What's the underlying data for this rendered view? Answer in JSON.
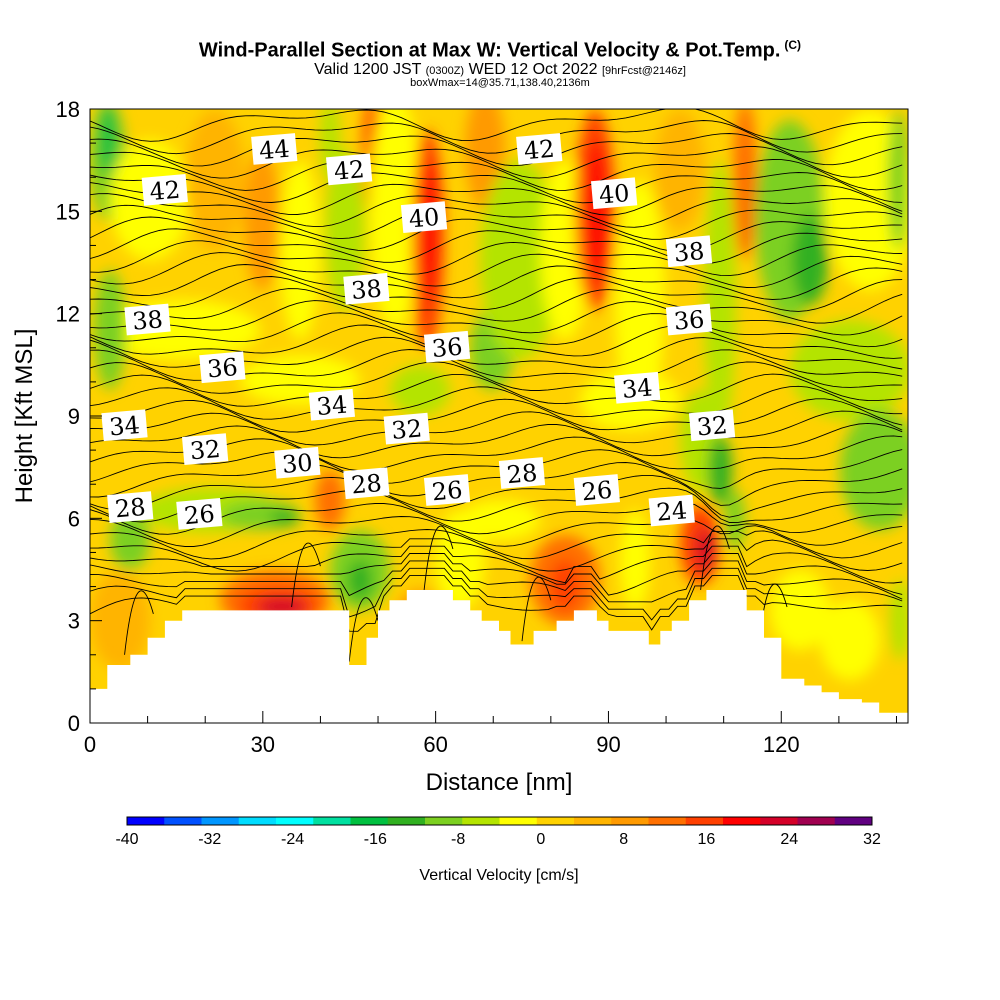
{
  "header": {
    "title": "Wind-Parallel Section at Max W: Vertical Velocity & Pot.Temp.",
    "copyright": "(C)",
    "valid_prefix": "Valid 1200 JST",
    "valid_utc": "(0300Z)",
    "valid_date": "WED 12 Oct 2022",
    "forecast_info": "[9hrFcst@2146z]",
    "box_info": "boxWmax=14@35.71,138.40,2136m"
  },
  "chart_data": {
    "type": "heatmap",
    "xlabel": "Distance [nm]",
    "ylabel": "Height [Kft MSL]",
    "xlim": [
      0,
      142
    ],
    "ylim": [
      0,
      18
    ],
    "x_ticks": [
      0,
      30,
      60,
      90,
      120
    ],
    "y_ticks": [
      0,
      3,
      6,
      9,
      12,
      15,
      18
    ],
    "colorbar": {
      "title": "Vertical Velocity [cm/s]",
      "tick_labels": [
        "-40",
        "-32",
        "-24",
        "-16",
        "-8",
        "0",
        "8",
        "16",
        "24",
        "32"
      ],
      "tick_values": [
        -40,
        -32,
        -24,
        -16,
        -8,
        0,
        8,
        16,
        24,
        32
      ],
      "colors": [
        "#0000ff",
        "#0050ff",
        "#0096ff",
        "#00dcff",
        "#00ffff",
        "#00e0a0",
        "#00c040",
        "#30b020",
        "#7cd020",
        "#b4e400",
        "#ffff00",
        "#ffd200",
        "#ffb400",
        "#ff9a00",
        "#ff7000",
        "#ff4000",
        "#ff0000",
        "#d40028",
        "#a00050",
        "#600080"
      ]
    },
    "terrain": [
      [
        0,
        1.0
      ],
      [
        3,
        1.7
      ],
      [
        7,
        2.0
      ],
      [
        10,
        2.5
      ],
      [
        13,
        3.0
      ],
      [
        16,
        3.3
      ],
      [
        24,
        3.3
      ],
      [
        32,
        3.3
      ],
      [
        42,
        3.3
      ],
      [
        45,
        1.7
      ],
      [
        48,
        2.5
      ],
      [
        50,
        3.3
      ],
      [
        52,
        3.6
      ],
      [
        55,
        3.9
      ],
      [
        61,
        3.9
      ],
      [
        63,
        3.6
      ],
      [
        66,
        3.3
      ],
      [
        68,
        3.0
      ],
      [
        71,
        2.7
      ],
      [
        73,
        2.3
      ],
      [
        77,
        2.7
      ],
      [
        81,
        3.0
      ],
      [
        84,
        3.3
      ],
      [
        88,
        3.0
      ],
      [
        90,
        2.7
      ],
      [
        94,
        2.7
      ],
      [
        97,
        2.3
      ],
      [
        99,
        2.7
      ],
      [
        101,
        3.0
      ],
      [
        104,
        3.6
      ],
      [
        107,
        3.9
      ],
      [
        111,
        3.9
      ],
      [
        114,
        3.3
      ],
      [
        117,
        2.5
      ],
      [
        120,
        1.3
      ],
      [
        124,
        1.1
      ],
      [
        127,
        0.9
      ],
      [
        130,
        0.7
      ],
      [
        134,
        0.6
      ],
      [
        137,
        0.3
      ],
      [
        142,
        0.3
      ]
    ],
    "theta_contour_labels": [
      {
        "text": "44",
        "x": 32,
        "y": 16.8
      },
      {
        "text": "42",
        "x": 13,
        "y": 15.6
      },
      {
        "text": "42",
        "x": 45,
        "y": 16.2
      },
      {
        "text": "42",
        "x": 78,
        "y": 16.8
      },
      {
        "text": "40",
        "x": 58,
        "y": 14.8
      },
      {
        "text": "40",
        "x": 91,
        "y": 15.5
      },
      {
        "text": "38",
        "x": 104,
        "y": 13.8
      },
      {
        "text": "38",
        "x": 48,
        "y": 12.7
      },
      {
        "text": "38",
        "x": 10,
        "y": 11.8
      },
      {
        "text": "36",
        "x": 62,
        "y": 11.0
      },
      {
        "text": "36",
        "x": 104,
        "y": 11.8
      },
      {
        "text": "36",
        "x": 23,
        "y": 10.4
      },
      {
        "text": "34",
        "x": 95,
        "y": 9.8
      },
      {
        "text": "34",
        "x": 42,
        "y": 9.3
      },
      {
        "text": "34",
        "x": 6,
        "y": 8.7
      },
      {
        "text": "32",
        "x": 55,
        "y": 8.6
      },
      {
        "text": "32",
        "x": 108,
        "y": 8.7
      },
      {
        "text": "32",
        "x": 20,
        "y": 8.0
      },
      {
        "text": "30",
        "x": 36,
        "y": 7.6
      },
      {
        "text": "28",
        "x": 48,
        "y": 7.0
      },
      {
        "text": "28",
        "x": 75,
        "y": 7.3
      },
      {
        "text": "28",
        "x": 7,
        "y": 6.3
      },
      {
        "text": "26",
        "x": 62,
        "y": 6.8
      },
      {
        "text": "26",
        "x": 88,
        "y": 6.8
      },
      {
        "text": "26",
        "x": 19,
        "y": 6.1
      },
      {
        "text": "24",
        "x": 101,
        "y": 6.2
      }
    ]
  }
}
